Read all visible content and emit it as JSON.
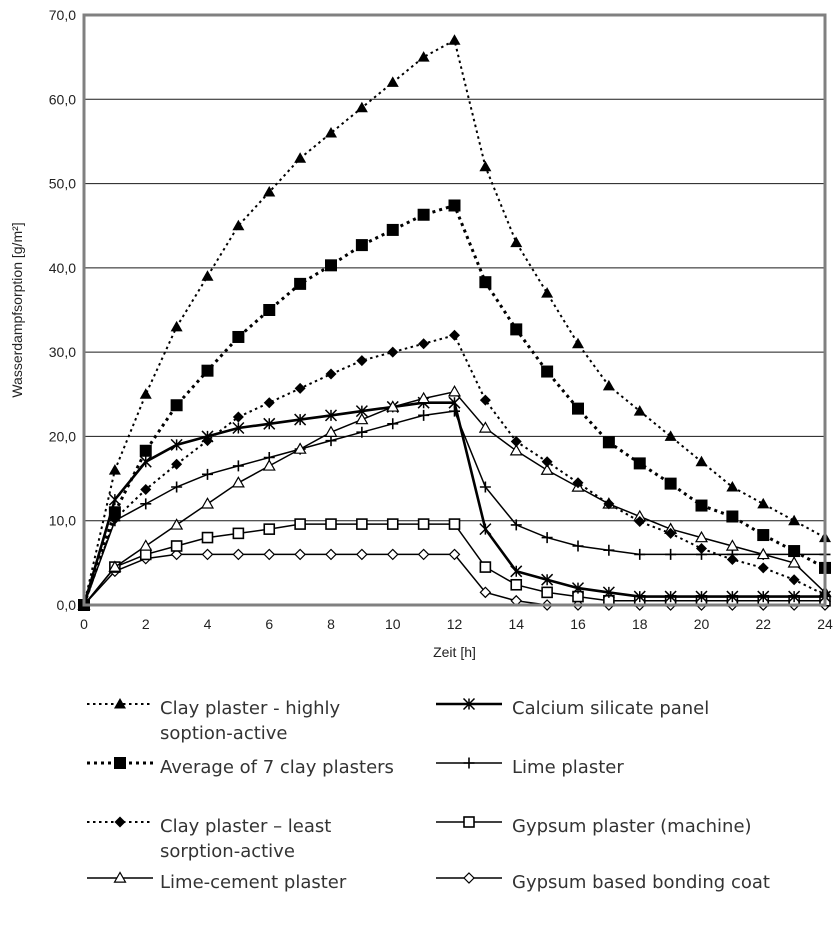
{
  "chart_data": {
    "type": "line",
    "xlabel": "Zeit [h]",
    "ylabel": "Wasserdampfsorption [g/m²]",
    "xlim": [
      0,
      24
    ],
    "ylim": [
      0,
      70
    ],
    "x_ticks": [
      "0",
      "2",
      "4",
      "6",
      "8",
      "10",
      "12",
      "14",
      "16",
      "18",
      "20",
      "22",
      "24"
    ],
    "y_ticks": [
      "0,0",
      "10,0",
      "20,0",
      "30,0",
      "40,0",
      "50,0",
      "60,0",
      "70,0"
    ],
    "grid": "horizontal",
    "legend_position": "bottom",
    "x": [
      0,
      1,
      2,
      3,
      4,
      5,
      6,
      7,
      8,
      9,
      10,
      11,
      12,
      13,
      14,
      15,
      16,
      17,
      18,
      19,
      20,
      21,
      22,
      23,
      24
    ],
    "series": [
      {
        "name": "Clay plaster - highly soption-active",
        "legend_lines": [
          "Clay plaster - highly",
          "soption-active"
        ],
        "line": "dotted",
        "marker": "filled-triangle",
        "values": [
          0,
          16,
          25,
          33,
          39,
          45,
          49,
          53,
          56,
          59,
          62,
          65,
          67,
          52,
          43,
          37,
          31,
          26,
          23,
          20,
          17,
          14,
          12,
          10,
          8
        ]
      },
      {
        "name": "Average of 7 clay plasters",
        "legend_lines": [
          "Average of 7 clay plasters"
        ],
        "line": "dotted-bold",
        "marker": "filled-square",
        "values": [
          0,
          11,
          18.3,
          23.7,
          27.8,
          31.8,
          35,
          38.1,
          40.3,
          42.7,
          44.5,
          46.3,
          47.4,
          38.3,
          32.7,
          27.7,
          23.3,
          19.3,
          16.8,
          14.4,
          11.8,
          10.5,
          8.3,
          6.4,
          4.4
        ]
      },
      {
        "name": "Clay plaster – least sorption-active",
        "legend_lines": [
          "Clay plaster – least",
          "sorption-active"
        ],
        "line": "dotted",
        "marker": "filled-diamond",
        "values": [
          0,
          10.2,
          13.7,
          16.7,
          19.5,
          22.3,
          24,
          25.7,
          27.4,
          29,
          30,
          31,
          32,
          24.3,
          19.4,
          17,
          14.5,
          12,
          9.9,
          8.5,
          6.7,
          5.4,
          4.4,
          3,
          1.2
        ]
      },
      {
        "name": "Lime-cement plaster",
        "legend_lines": [
          "Lime-cement plaster"
        ],
        "line": "solid",
        "marker": "open-triangle",
        "values": [
          0,
          4.5,
          7,
          9.5,
          12,
          14.5,
          16.5,
          18.5,
          20.5,
          22,
          23.5,
          24.5,
          25.3,
          21,
          18.3,
          16,
          14,
          12,
          10.5,
          9,
          8,
          7,
          6,
          5,
          1.5
        ]
      },
      {
        "name": "Calcium silicate panel",
        "legend_lines": [
          "Calcium silicate panel"
        ],
        "line": "solid-bold",
        "marker": "asterisk",
        "values": [
          0,
          12.5,
          17,
          19,
          20,
          21,
          21.5,
          22,
          22.5,
          23,
          23.5,
          24,
          24,
          9,
          4,
          3,
          2,
          1.5,
          1,
          1,
          1,
          1,
          1,
          1,
          1
        ]
      },
      {
        "name": "Lime plaster",
        "legend_lines": [
          "Lime plaster"
        ],
        "line": "solid",
        "marker": "plus",
        "values": [
          0,
          10,
          12,
          14,
          15.5,
          16.5,
          17.5,
          18.5,
          19.5,
          20.5,
          21.5,
          22.5,
          23,
          14,
          9.5,
          8,
          7,
          6.5,
          6,
          6,
          6,
          6,
          6,
          6,
          6
        ]
      },
      {
        "name": "Gypsum plaster (machine)",
        "legend_lines": [
          "Gypsum plaster (machine)"
        ],
        "line": "solid",
        "marker": "open-square",
        "values": [
          0,
          4.5,
          6,
          7,
          8,
          8.5,
          9,
          9.6,
          9.6,
          9.6,
          9.6,
          9.6,
          9.6,
          4.5,
          2.4,
          1.5,
          1,
          0.5,
          0.5,
          0.5,
          0.5,
          0.5,
          0.5,
          0.5,
          0.5
        ]
      },
      {
        "name": "Gypsum based bonding coat",
        "legend_lines": [
          "Gypsum based bonding coat"
        ],
        "line": "solid",
        "marker": "open-diamond",
        "values": [
          0,
          4,
          5.5,
          6,
          6,
          6,
          6,
          6,
          6,
          6,
          6,
          6,
          6,
          1.5,
          0.5,
          0,
          0,
          0,
          0,
          0,
          0,
          0,
          0,
          0,
          0
        ]
      }
    ]
  }
}
